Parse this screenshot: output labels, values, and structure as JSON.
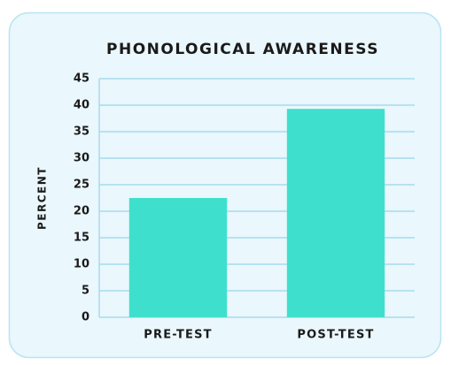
{
  "chart_data": {
    "type": "bar",
    "title": "PHONOLOGICAL AWARENESS",
    "y_label": "PERCENT",
    "categories": [
      "PRE-TEST",
      "POST-TEST"
    ],
    "values": [
      22.5,
      39.3
    ],
    "color": "#3ee0cd",
    "ylim": [
      0,
      45
    ],
    "yticks": [
      0,
      5,
      10,
      15,
      20,
      25,
      30,
      35,
      40,
      45
    ],
    "grid": true
  }
}
